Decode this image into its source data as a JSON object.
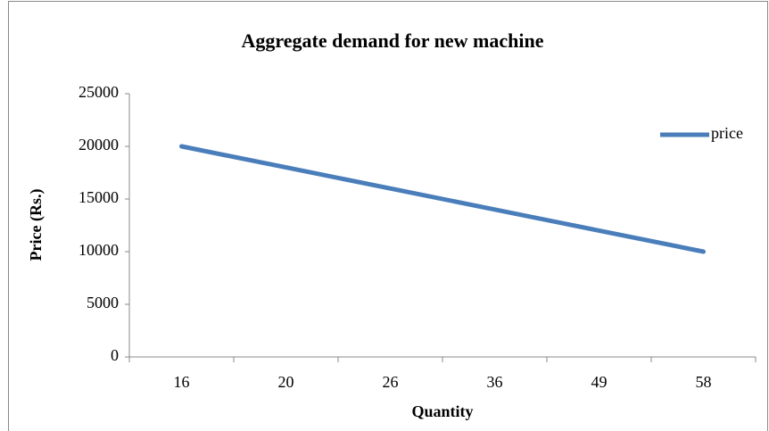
{
  "chart_data": {
    "type": "line",
    "title": "Aggregate demand  for new  machine",
    "x_label": "Quantity",
    "y_label": "Price (Rs.)",
    "categories": [
      "16",
      "20",
      "26",
      "36",
      "49",
      "58"
    ],
    "series": [
      {
        "name": "price",
        "color": "#4a7ebb",
        "values": [
          20000,
          18000,
          16000,
          14000,
          12000,
          10000
        ]
      }
    ],
    "ylim": [
      0,
      25000
    ],
    "yticks": [
      0,
      5000,
      10000,
      15000,
      20000,
      25000
    ],
    "grid": false,
    "legend": "right"
  }
}
